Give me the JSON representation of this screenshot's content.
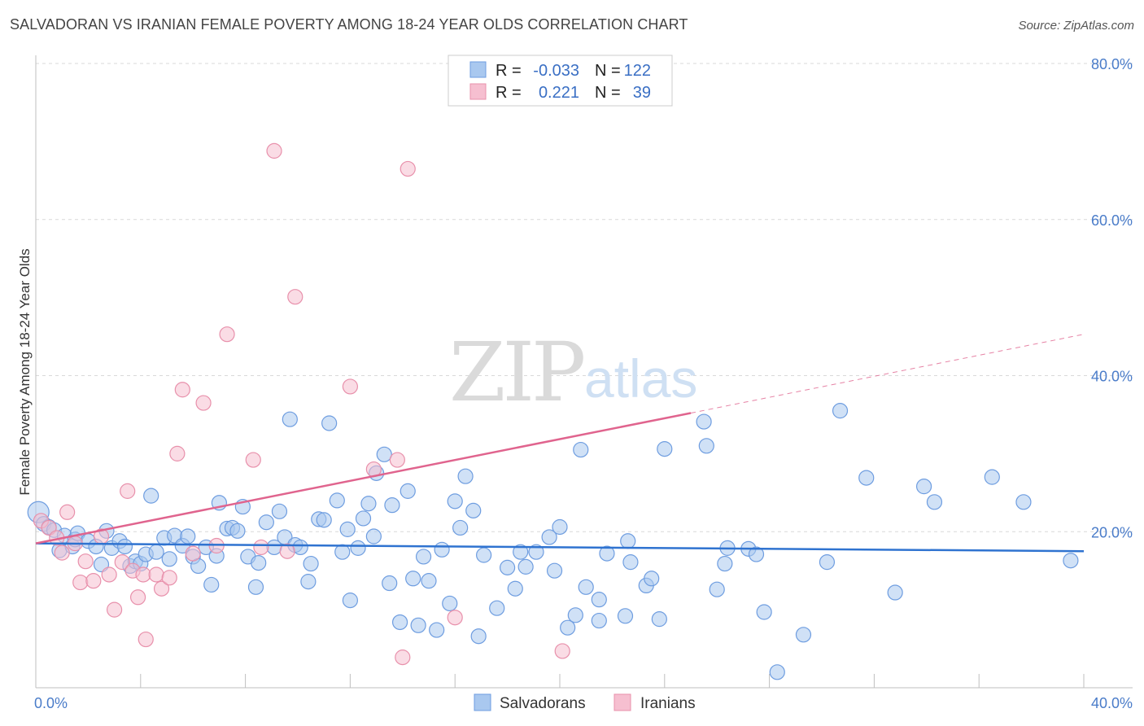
{
  "header": {
    "title": "SALVADORAN VS IRANIAN FEMALE POVERTY AMONG 18-24 YEAR OLDS CORRELATION CHART",
    "source": "Source: ZipAtlas.com"
  },
  "watermark": {
    "zip": "ZIP",
    "atlas": "atlas"
  },
  "colors": {
    "salvadoran_fill": "#a9c8ef",
    "salvadoran_stroke": "#6e9de0",
    "salvadoran_line": "#2f73d0",
    "iranian_fill": "#f6bfd0",
    "iranian_stroke": "#e890ab",
    "iranian_line": "#e0648e",
    "grid": "#d9d9d9",
    "axis_text": "#4a7cc9"
  },
  "legend": {
    "rows": [
      {
        "r_label": "R =",
        "r_value": "-0.033",
        "n_label": "N =",
        "n_value": "122"
      },
      {
        "r_label": "R =",
        "r_value": "0.221",
        "n_label": "N =",
        "n_value": "39"
      }
    ]
  },
  "bottom_legend": [
    "Salvadorans",
    "Iranians"
  ],
  "chart_data": {
    "type": "scatter",
    "title": "SALVADORAN VS IRANIAN FEMALE POVERTY AMONG 18-24 YEAR OLDS CORRELATION CHART",
    "xlabel": "",
    "ylabel": "Female Poverty Among 18-24 Year Olds",
    "xlim": [
      0,
      40
    ],
    "ylim": [
      0,
      80
    ],
    "x_tick_labels": [
      "0.0%",
      "40.0%"
    ],
    "y_tick_labels": [
      "80.0%",
      "60.0%",
      "40.0%",
      "20.0%"
    ],
    "y_tick_values": [
      80,
      60,
      40,
      20
    ],
    "series": [
      {
        "name": "Salvadorans",
        "r": -0.033,
        "n": 122,
        "trend": {
          "x": [
            0,
            40
          ],
          "y": [
            18.5,
            17.5
          ],
          "style": "solid"
        },
        "points": [
          [
            0.1,
            22.5
          ],
          [
            0.3,
            21.0
          ],
          [
            0.5,
            20.6
          ],
          [
            0.7,
            20.2
          ],
          [
            0.9,
            17.6
          ],
          [
            1.1,
            19.5
          ],
          [
            1.4,
            18.1
          ],
          [
            1.5,
            19.0
          ],
          [
            1.6,
            19.8
          ],
          [
            2.0,
            18.8
          ],
          [
            2.3,
            18.1
          ],
          [
            2.5,
            15.8
          ],
          [
            2.7,
            20.1
          ],
          [
            2.9,
            17.9
          ],
          [
            3.2,
            18.8
          ],
          [
            3.4,
            18.1
          ],
          [
            3.6,
            15.6
          ],
          [
            3.8,
            16.2
          ],
          [
            4.0,
            15.9
          ],
          [
            4.2,
            17.1
          ],
          [
            4.4,
            24.6
          ],
          [
            4.6,
            17.4
          ],
          [
            4.9,
            19.2
          ],
          [
            5.1,
            16.5
          ],
          [
            5.3,
            19.5
          ],
          [
            5.6,
            18.2
          ],
          [
            5.8,
            19.4
          ],
          [
            6.0,
            16.8
          ],
          [
            6.2,
            15.6
          ],
          [
            6.5,
            18.0
          ],
          [
            6.7,
            13.2
          ],
          [
            6.9,
            16.9
          ],
          [
            7.0,
            23.7
          ],
          [
            7.3,
            20.4
          ],
          [
            7.5,
            20.5
          ],
          [
            7.7,
            20.1
          ],
          [
            7.9,
            23.2
          ],
          [
            8.1,
            16.8
          ],
          [
            8.4,
            12.9
          ],
          [
            8.5,
            16.0
          ],
          [
            8.8,
            21.2
          ],
          [
            9.1,
            18.0
          ],
          [
            9.3,
            22.6
          ],
          [
            9.5,
            19.3
          ],
          [
            9.7,
            34.4
          ],
          [
            9.9,
            18.3
          ],
          [
            10.1,
            18.0
          ],
          [
            10.4,
            13.6
          ],
          [
            10.5,
            15.9
          ],
          [
            10.8,
            21.6
          ],
          [
            11.0,
            21.5
          ],
          [
            11.2,
            33.9
          ],
          [
            11.5,
            24.0
          ],
          [
            11.7,
            17.4
          ],
          [
            11.9,
            20.3
          ],
          [
            12.0,
            11.2
          ],
          [
            12.3,
            17.9
          ],
          [
            12.5,
            21.7
          ],
          [
            12.7,
            23.6
          ],
          [
            12.9,
            19.4
          ],
          [
            13.0,
            27.5
          ],
          [
            13.3,
            29.9
          ],
          [
            13.5,
            13.4
          ],
          [
            13.6,
            23.4
          ],
          [
            13.9,
            8.4
          ],
          [
            14.2,
            25.2
          ],
          [
            14.4,
            14.0
          ],
          [
            14.6,
            8.0
          ],
          [
            14.8,
            16.8
          ],
          [
            15.0,
            13.7
          ],
          [
            15.3,
            7.4
          ],
          [
            15.5,
            17.7
          ],
          [
            15.8,
            10.8
          ],
          [
            16.0,
            23.9
          ],
          [
            16.2,
            20.5
          ],
          [
            16.4,
            27.1
          ],
          [
            16.7,
            22.7
          ],
          [
            16.9,
            6.6
          ],
          [
            17.1,
            17.0
          ],
          [
            17.6,
            10.2
          ],
          [
            18.0,
            15.4
          ],
          [
            18.3,
            12.7
          ],
          [
            18.5,
            17.4
          ],
          [
            18.7,
            15.5
          ],
          [
            19.1,
            17.4
          ],
          [
            19.6,
            19.3
          ],
          [
            19.8,
            15.0
          ],
          [
            20.0,
            20.6
          ],
          [
            20.3,
            7.7
          ],
          [
            20.6,
            9.3
          ],
          [
            20.8,
            30.5
          ],
          [
            21.0,
            12.9
          ],
          [
            21.5,
            11.3
          ],
          [
            21.5,
            8.6
          ],
          [
            21.8,
            17.2
          ],
          [
            22.5,
            9.2
          ],
          [
            22.6,
            18.8
          ],
          [
            22.7,
            16.1
          ],
          [
            23.3,
            13.1
          ],
          [
            23.5,
            14.0
          ],
          [
            23.8,
            8.8
          ],
          [
            24.0,
            30.6
          ],
          [
            25.5,
            34.1
          ],
          [
            25.6,
            31.0
          ],
          [
            26.0,
            12.6
          ],
          [
            26.3,
            15.9
          ],
          [
            26.4,
            17.9
          ],
          [
            27.2,
            17.8
          ],
          [
            27.5,
            17.1
          ],
          [
            27.8,
            9.7
          ],
          [
            28.3,
            2.0
          ],
          [
            29.3,
            6.8
          ],
          [
            30.2,
            16.1
          ],
          [
            30.7,
            35.5
          ],
          [
            31.7,
            26.9
          ],
          [
            32.8,
            12.2
          ],
          [
            33.9,
            25.8
          ],
          [
            34.3,
            23.8
          ],
          [
            36.5,
            27.0
          ],
          [
            37.7,
            23.8
          ],
          [
            39.5,
            16.3
          ]
        ]
      },
      {
        "name": "Iranians",
        "r": 0.221,
        "n": 39,
        "trend": {
          "x": [
            0,
            25
          ],
          "y": [
            18.5,
            35.2
          ],
          "style": "solid",
          "extension": {
            "x": [
              25,
              40
            ],
            "y": [
              35.2,
              45.3
            ],
            "style": "dashed"
          }
        },
        "points": [
          [
            0.2,
            21.4
          ],
          [
            0.5,
            20.5
          ],
          [
            0.8,
            19.2
          ],
          [
            1.0,
            17.3
          ],
          [
            1.2,
            22.5
          ],
          [
            1.5,
            18.5
          ],
          [
            1.7,
            13.5
          ],
          [
            1.9,
            16.2
          ],
          [
            2.2,
            13.7
          ],
          [
            2.5,
            19.4
          ],
          [
            2.8,
            14.5
          ],
          [
            3.0,
            10.0
          ],
          [
            3.3,
            16.1
          ],
          [
            3.5,
            25.2
          ],
          [
            3.7,
            15.0
          ],
          [
            3.9,
            11.6
          ],
          [
            4.1,
            14.5
          ],
          [
            4.2,
            6.2
          ],
          [
            4.6,
            14.5
          ],
          [
            4.8,
            12.7
          ],
          [
            5.1,
            14.1
          ],
          [
            5.4,
            30.0
          ],
          [
            5.6,
            38.2
          ],
          [
            6.0,
            17.2
          ],
          [
            6.4,
            36.5
          ],
          [
            6.9,
            18.2
          ],
          [
            7.3,
            45.3
          ],
          [
            8.3,
            29.2
          ],
          [
            8.6,
            18.0
          ],
          [
            9.1,
            68.8
          ],
          [
            9.6,
            17.5
          ],
          [
            9.9,
            50.1
          ],
          [
            12.0,
            38.6
          ],
          [
            12.9,
            28.0
          ],
          [
            13.8,
            29.2
          ],
          [
            14.0,
            3.9
          ],
          [
            14.2,
            66.5
          ],
          [
            16.0,
            9.0
          ],
          [
            20.1,
            4.7
          ]
        ]
      }
    ]
  }
}
